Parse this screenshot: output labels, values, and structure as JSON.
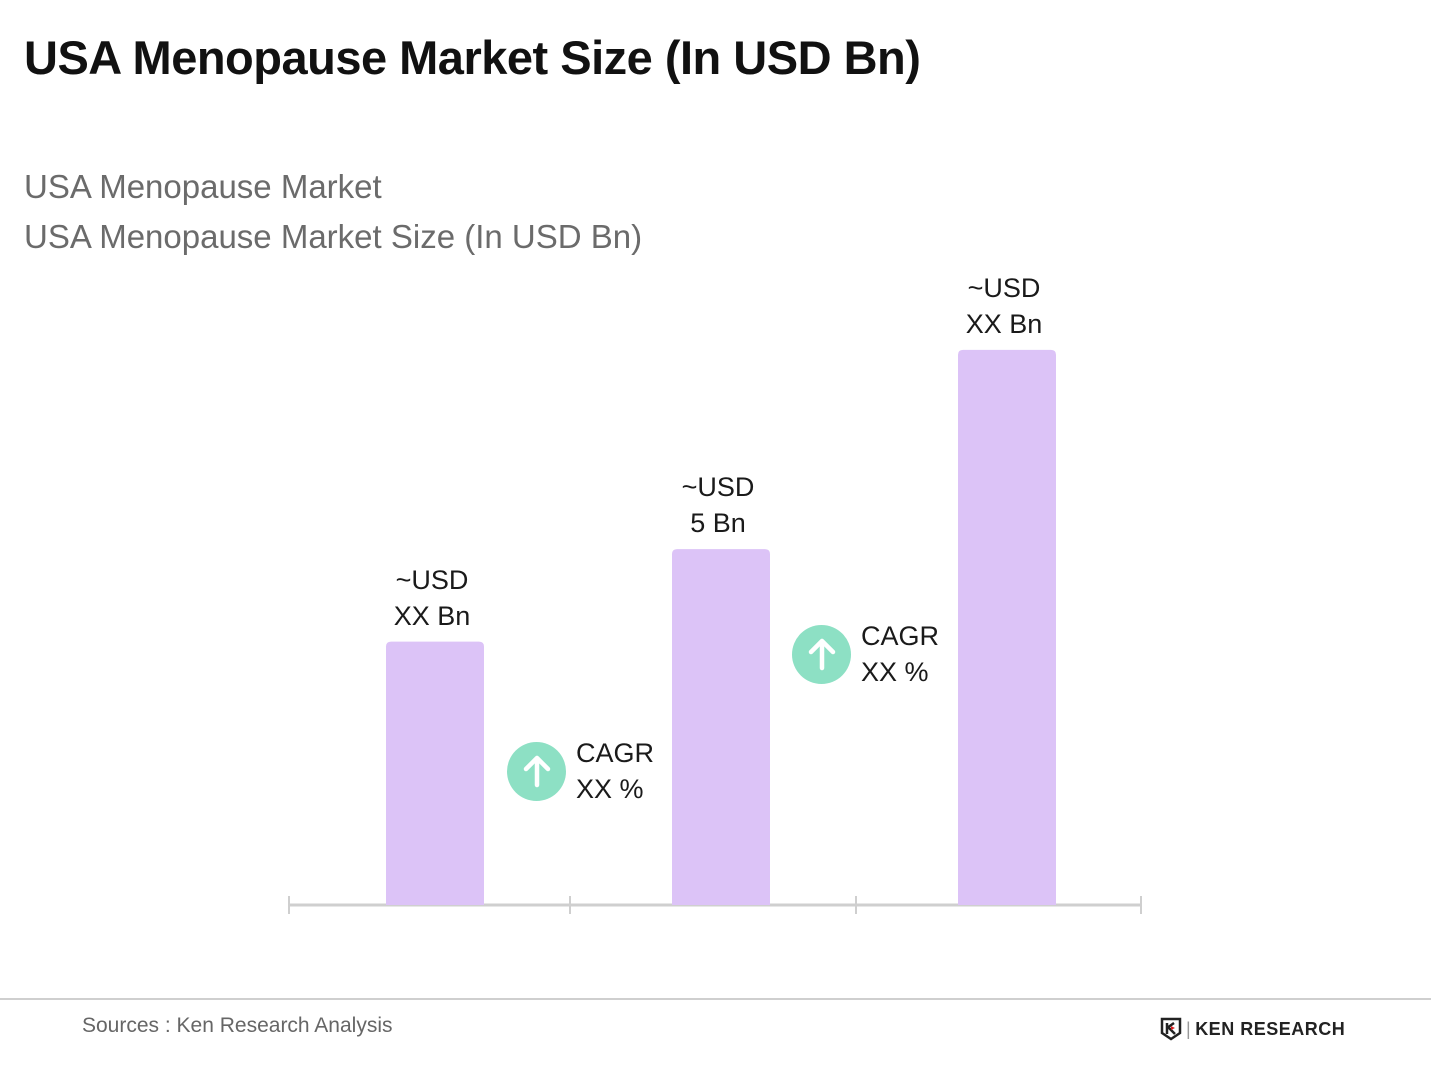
{
  "title": "USA Menopause Market Size (In USD Bn)",
  "subtitles": [
    "USA Menopause Market",
    "USA Menopause Market Size (In USD Bn)"
  ],
  "chart_data": {
    "type": "bar",
    "title": "USA Menopause Market Size (In USD Bn)",
    "categories": [
      "",
      "",
      ""
    ],
    "values": [
      3.7,
      5,
      7.8
    ],
    "data_labels": [
      {
        "line1": "~USD",
        "line2": "XX Bn"
      },
      {
        "line1": "~USD",
        "line2": "5 Bn"
      },
      {
        "line1": "~USD",
        "line2": "XX Bn"
      }
    ],
    "annotations": [
      {
        "line1": "CAGR",
        "line2": "XX %"
      },
      {
        "line1": "CAGR",
        "line2": "XX %"
      }
    ],
    "ylim": [
      0,
      8.5
    ],
    "bar_color": "#dcc3f7",
    "cagr_color": "#8de0c4",
    "axis_color": "#cfcfcf",
    "grid": false,
    "xlabel": "",
    "ylabel": ""
  },
  "footer": {
    "source": "Sources : Ken Research Analysis",
    "logo": "KEN RESEARCH"
  }
}
